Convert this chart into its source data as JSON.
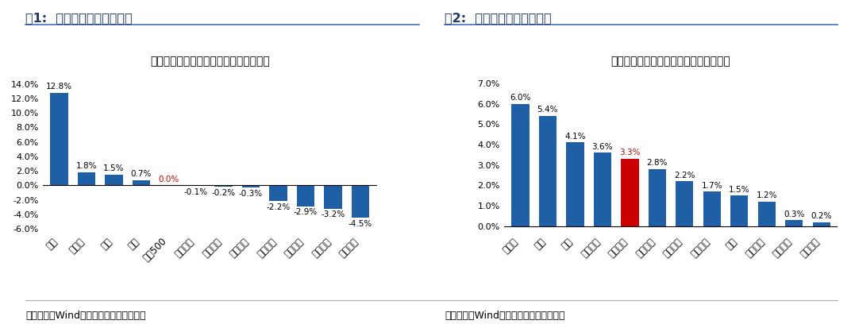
{
  "chart1": {
    "title": "美国：标普行业指数涨跌幅（国庆期间）",
    "header": "图1:  国庆期间美股涨跌结构",
    "categories": [
      "能源",
      "原材料",
      "工业",
      "金融",
      "标普500",
      "医疗保健",
      "通信设备",
      "信息技术",
      "必需消费",
      "可选消费",
      "建筑地产",
      "公用事业"
    ],
    "values": [
      12.8,
      1.8,
      1.5,
      0.7,
      0.0,
      -0.1,
      -0.2,
      -0.3,
      -2.2,
      -2.9,
      -3.2,
      -4.5
    ],
    "bar_colors": [
      "#1F5FA6",
      "#1F5FA6",
      "#1F5FA6",
      "#1F5FA6",
      "#CC0000",
      "#1F5FA6",
      "#1F5FA6",
      "#1F5FA6",
      "#1F5FA6",
      "#1F5FA6",
      "#1F5FA6",
      "#1F5FA6"
    ],
    "label_colors": [
      "black",
      "black",
      "black",
      "black",
      "#CC0000",
      "black",
      "black",
      "black",
      "black",
      "black",
      "black",
      "black"
    ],
    "ylim": [
      -6.5,
      15.5
    ],
    "yticks": [
      -6.0,
      -4.0,
      -2.0,
      0.0,
      2.0,
      4.0,
      6.0,
      8.0,
      10.0,
      12.0,
      14.0
    ],
    "ytick_labels": [
      "-6.0%",
      "-4.0%",
      "-2.0%",
      "0.0%",
      "2.0%",
      "4.0%",
      "6.0%",
      "8.0%",
      "10.0%",
      "12.0%",
      "14.0%"
    ],
    "source": "数据来源：Wind，广发证券发展研究中心"
  },
  "chart2": {
    "title": "香港：恒生行业指数涨跌幅（国庆期间）",
    "header": "图2:  国庆期间港股涨跌结构",
    "categories": [
      "原材料",
      "能源",
      "金融",
      "必需消费",
      "恒生指数",
      "建筑地产",
      "可选消费",
      "信息技术",
      "工业",
      "通信设备",
      "医疗保健",
      "公用事业"
    ],
    "values": [
      6.0,
      5.4,
      4.1,
      3.6,
      3.3,
      2.8,
      2.2,
      1.7,
      1.5,
      1.2,
      0.3,
      0.2
    ],
    "bar_colors": [
      "#1F5FA6",
      "#1F5FA6",
      "#1F5FA6",
      "#1F5FA6",
      "#CC0000",
      "#1F5FA6",
      "#1F5FA6",
      "#1F5FA6",
      "#1F5FA6",
      "#1F5FA6",
      "#1F5FA6",
      "#1F5FA6"
    ],
    "label_colors": [
      "black",
      "black",
      "black",
      "black",
      "#CC0000",
      "black",
      "black",
      "black",
      "black",
      "black",
      "black",
      "black"
    ],
    "ylim": [
      -0.3,
      7.5
    ],
    "yticks": [
      0.0,
      1.0,
      2.0,
      3.0,
      4.0,
      5.0,
      6.0,
      7.0
    ],
    "ytick_labels": [
      "0.0%",
      "1.0%",
      "2.0%",
      "3.0%",
      "4.0%",
      "5.0%",
      "6.0%",
      "7.0%"
    ],
    "source": "数据来源：Wind，广发证券发展研究中心"
  },
  "background_color": "#FFFFFF",
  "header_line_color": "#4472C4",
  "divider_color": "#AAAAAA"
}
